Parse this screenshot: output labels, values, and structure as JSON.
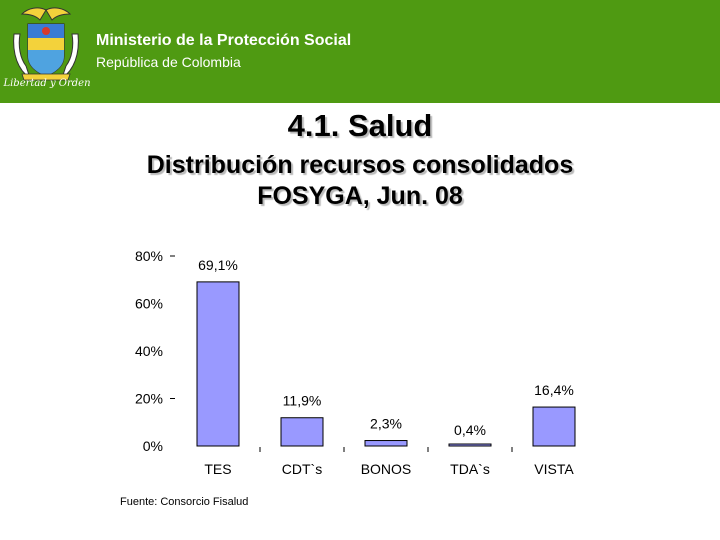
{
  "header": {
    "ministry": "Ministerio de la Protección Social",
    "republic": "República de Colombia",
    "motto": "Libertad y Orden"
  },
  "slide": {
    "section_title": "4.1. Salud",
    "chart_title_line1": "Distribución recursos consolidados",
    "chart_title_line2": "FOSYGA, Jun. 08"
  },
  "colors": {
    "header_bg": "#4f9a12",
    "bar_fill": "#9999ff",
    "bar_stroke": "#000000"
  },
  "chart_data": {
    "type": "bar",
    "title": "Distribución recursos consolidados FOSYGA, Jun. 08",
    "categories": [
      "TES",
      "CDT`s",
      "BONOS",
      "TDA`s",
      "VISTA"
    ],
    "values": [
      69.1,
      11.9,
      2.3,
      0.4,
      16.4
    ],
    "data_labels": [
      "69,1%",
      "11,9%",
      "2,3%",
      "0,4%",
      "16,4%"
    ],
    "ylim": [
      0,
      80
    ],
    "yticks": [
      0,
      20,
      40,
      60,
      80
    ],
    "ytick_labels": [
      "0%",
      "20%",
      "40%",
      "60%",
      "80%"
    ],
    "xlabel": "",
    "ylabel": "",
    "grid": false,
    "legend": "none"
  },
  "footer": {
    "source": "Fuente:  Consorcio Fisalud"
  }
}
